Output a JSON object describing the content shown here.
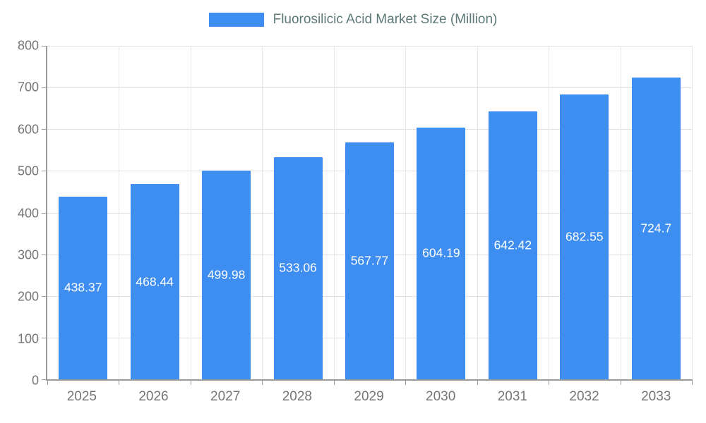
{
  "legend": {
    "label": "Fluorosilicic Acid Market Size (Million)"
  },
  "chart_data": {
    "type": "bar",
    "title": "Fluorosilicic Acid Market Size (Million)",
    "categories": [
      "2025",
      "2026",
      "2027",
      "2028",
      "2029",
      "2030",
      "2031",
      "2032",
      "2033"
    ],
    "values": [
      438.37,
      468.44,
      499.98,
      533.06,
      567.77,
      604.19,
      642.42,
      682.55,
      724.7
    ],
    "value_labels": [
      "438.37",
      "468.44",
      "499.98",
      "533.06",
      "567.77",
      "604.19",
      "642.42",
      "682.55",
      "724.7"
    ],
    "xlabel": "",
    "ylabel": "",
    "ylim": [
      0,
      800
    ],
    "ytick_step": 100,
    "grid": true,
    "legend_position": "top",
    "colors": {
      "bar": "#3d8ef0",
      "value_label": "#ffffff",
      "axis_line": "#9b9b9b",
      "grid_line": "#e2e2e2",
      "tick_label": "#757575",
      "legend_text": "#5d7878"
    }
  }
}
